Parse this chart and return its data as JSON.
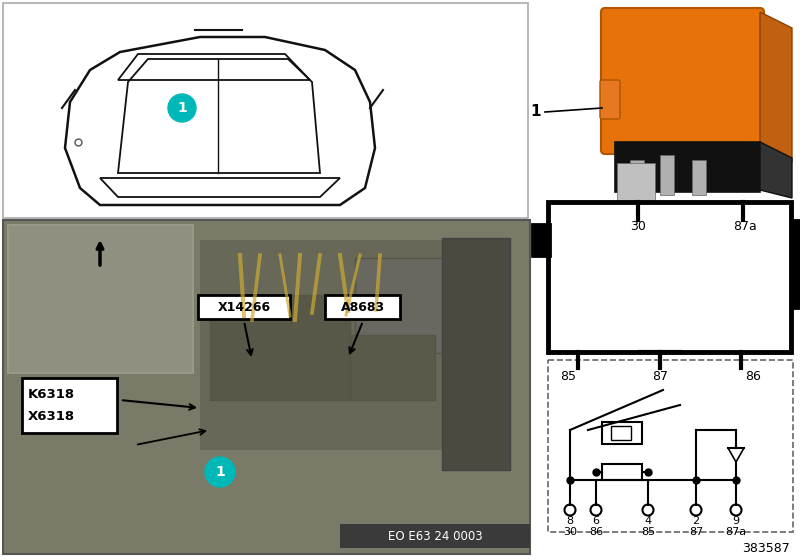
{
  "bg_color": "#ffffff",
  "relay_orange": "#E8720A",
  "cyan_color": "#00B8B8",
  "black": "#000000",
  "photo_bg": "#7a7a68",
  "thumb_bg": "#909080",
  "eo_text": "EO E63 24 0003",
  "part_number": "383587",
  "label1_line1": "K6318",
  "label1_line2": "X6318",
  "label2": "X14266",
  "label3": "A8683",
  "schematic_pin_nums": [
    "8",
    "6",
    "4",
    "2",
    "9"
  ],
  "schematic_pin_names": [
    "30",
    "86",
    "85",
    "87",
    "87a"
  ]
}
